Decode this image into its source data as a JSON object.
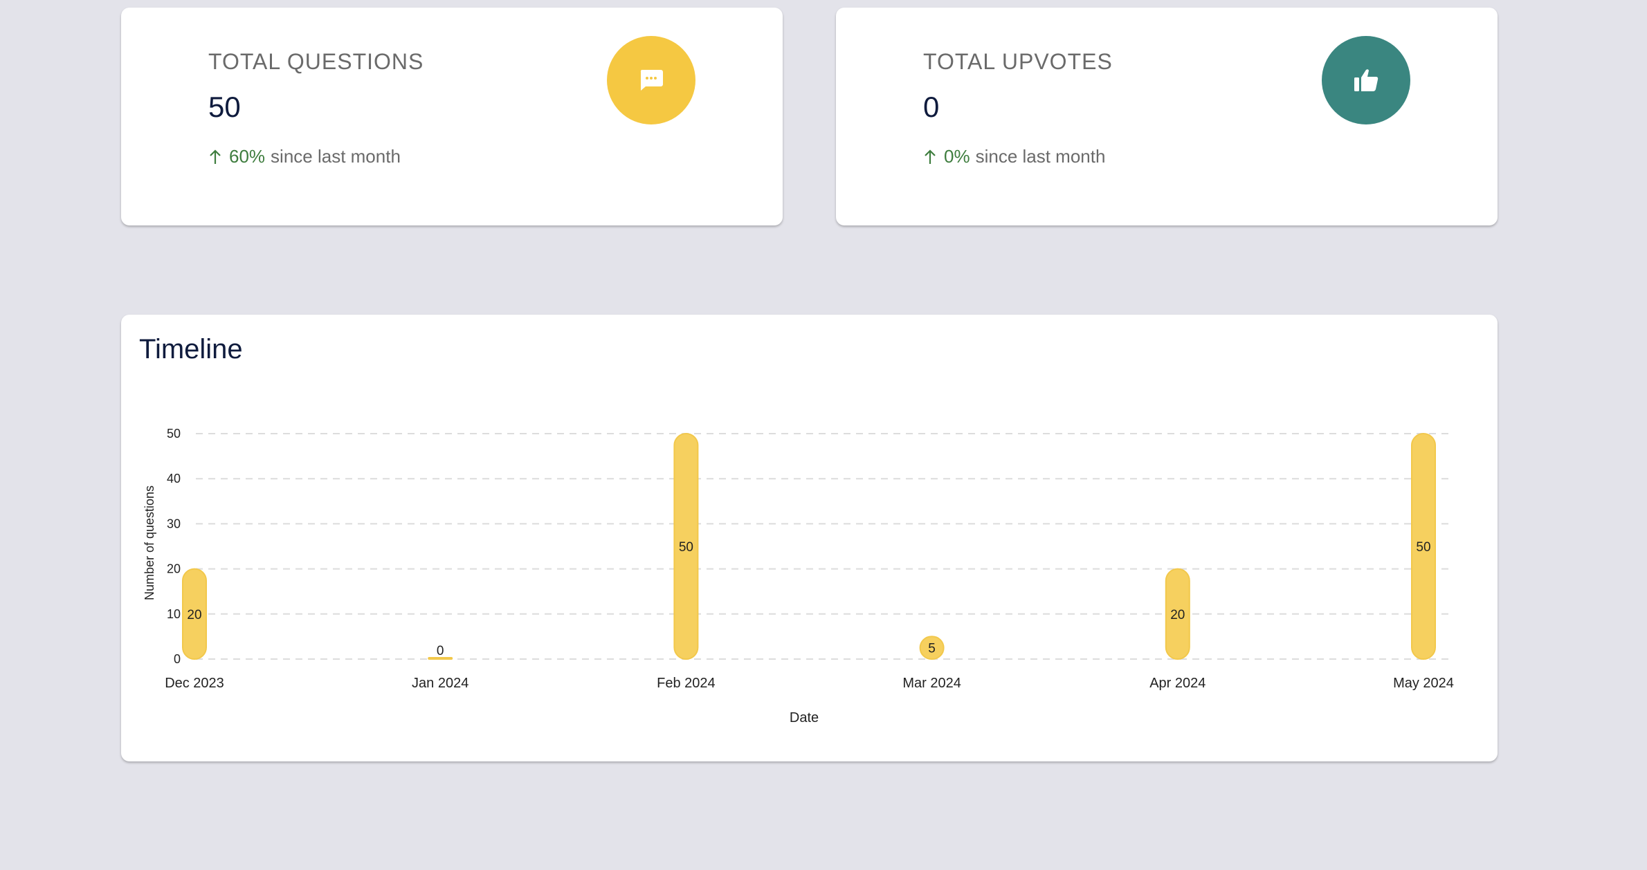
{
  "stats": {
    "questions": {
      "title": "TOTAL QUESTIONS",
      "value": "50",
      "trend_pct": "60%",
      "trend_text": "since last month",
      "icon": "chat-bubble-icon",
      "color": "#f5c842"
    },
    "upvotes": {
      "title": "TOTAL UPVOTES",
      "value": "0",
      "trend_pct": "0%",
      "trend_text": "since last month",
      "icon": "thumbs-up-icon",
      "color": "#3a8680"
    }
  },
  "timeline": {
    "title": "Timeline"
  },
  "chart_data": {
    "type": "bar",
    "categories": [
      "Dec 2023",
      "Jan 2024",
      "Feb 2024",
      "Mar 2024",
      "Apr 2024",
      "May 2024"
    ],
    "values": [
      20,
      0,
      50,
      5,
      20,
      50
    ],
    "xlabel": "Date",
    "ylabel": "Number of questions",
    "ylim": [
      0,
      50
    ],
    "yticks": [
      0,
      10,
      20,
      30,
      40,
      50
    ],
    "grid": true,
    "data_labels": true,
    "bar_color": "#f6d05f"
  }
}
